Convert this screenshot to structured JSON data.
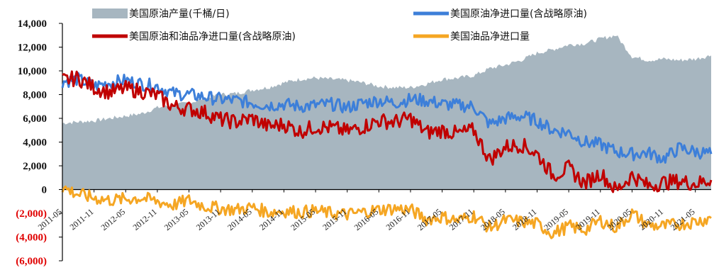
{
  "chart_data": {
    "type": "area",
    "x_format": "YYYY-MM",
    "x": [
      "2011-05",
      "2011-08",
      "2011-11",
      "2012-02",
      "2012-05",
      "2012-08",
      "2012-11",
      "2013-02",
      "2013-05",
      "2013-08",
      "2013-11",
      "2014-02",
      "2014-05",
      "2014-08",
      "2014-11",
      "2015-02",
      "2015-05",
      "2015-08",
      "2015-11",
      "2016-02",
      "2016-05",
      "2016-08",
      "2016-11",
      "2017-02",
      "2017-05",
      "2017-08",
      "2017-11",
      "2018-02",
      "2018-05",
      "2018-08",
      "2018-11",
      "2019-02",
      "2019-05",
      "2019-08",
      "2019-11",
      "2020-02",
      "2020-05",
      "2020-08",
      "2020-11",
      "2021-02",
      "2021-05",
      "2021-08"
    ],
    "xtick_labels": [
      "2011-05",
      "2011-11",
      "2012-05",
      "2012-11",
      "2013-05",
      "2013-11",
      "2014-05",
      "2014-11",
      "2015-05",
      "2015-11",
      "2016-05",
      "2016-11",
      "2017-05",
      "2017-11",
      "2018-05",
      "2018-11",
      "2019-05",
      "2019-11",
      "2020-05",
      "2020-11",
      "2021-05"
    ],
    "ylim": [
      -6000,
      14000
    ],
    "yticks": [
      14000,
      12000,
      10000,
      8000,
      6000,
      4000,
      2000,
      0,
      -2000,
      -4000,
      -6000
    ],
    "ytick_labels": [
      "14,000",
      "12,000",
      "10,000",
      "8,000",
      "6,000",
      "4,000",
      "2,000",
      "0",
      "(2,000)",
      "(4,000)",
      "(6,000)"
    ],
    "negative_tick_color": "#e00000",
    "legend_position": "top",
    "series": [
      {
        "name": "美国原油产量(千桶/日)",
        "kind": "area",
        "color": "#a7b6c0",
        "values": [
          5600,
          5700,
          5800,
          6000,
          6200,
          6400,
          6900,
          7100,
          7300,
          7700,
          8000,
          8100,
          8400,
          8600,
          9000,
          9300,
          9400,
          9300,
          9200,
          9000,
          8700,
          8600,
          8600,
          8900,
          9300,
          9400,
          9600,
          10200,
          10500,
          10900,
          11500,
          11800,
          12200,
          12300,
          12700,
          13000,
          11200,
          10900,
          11000,
          10900,
          11000,
          11300
        ]
      },
      {
        "name": "美国原油净进口量(含战略原油)",
        "kind": "line",
        "color": "#3d7fd9",
        "values": [
          9100,
          9300,
          8700,
          9000,
          9200,
          8900,
          8700,
          8100,
          8000,
          7800,
          7600,
          7500,
          7300,
          7100,
          7200,
          7000,
          7100,
          7200,
          6900,
          7300,
          7500,
          7300,
          7600,
          7500,
          7200,
          7100,
          7000,
          5500,
          6000,
          6200,
          5800,
          5000,
          4800,
          4000,
          3800,
          3200,
          3000,
          3100,
          2600,
          3500,
          3200,
          3000
        ]
      },
      {
        "name": "美国原油和油品净进口量(含战略原油)",
        "kind": "line",
        "color": "#c00000",
        "values": [
          9200,
          9400,
          8600,
          8200,
          8500,
          8300,
          7900,
          7000,
          6800,
          6500,
          5900,
          5700,
          6000,
          5300,
          5500,
          4900,
          5300,
          5200,
          4900,
          5300,
          5800,
          5700,
          6000,
          4800,
          5000,
          4700,
          5000,
          2500,
          3600,
          3800,
          3000,
          1200,
          1800,
          500,
          1400,
          -100,
          1200,
          300,
          600,
          700,
          500,
          800
        ]
      },
      {
        "name": "美国油品净进口量",
        "kind": "line",
        "color": "#f5a623",
        "values": [
          200,
          -400,
          -700,
          -900,
          -800,
          -700,
          -1000,
          -1300,
          -900,
          -1400,
          -1600,
          -1700,
          -1500,
          -1900,
          -1800,
          -1900,
          -1800,
          -2000,
          -2100,
          -1900,
          -1700,
          -1600,
          -1700,
          -2500,
          -2300,
          -2600,
          -2200,
          -3200,
          -2600,
          -2700,
          -2900,
          -3700,
          -3100,
          -3400,
          -2600,
          -3200,
          -2000,
          -3000,
          -3100,
          -2900,
          -2700,
          -2400
        ]
      }
    ]
  }
}
